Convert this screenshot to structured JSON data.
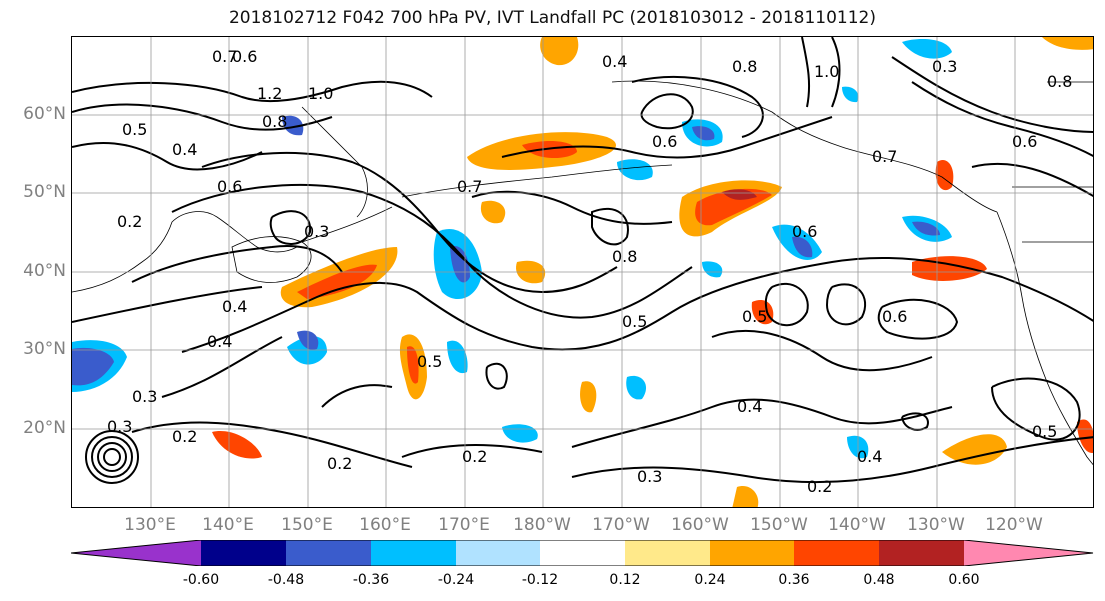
{
  "title": "2018102712 F042 700 hPa PV, IVT Landfall PC (2018103012 - 2018110112)",
  "lat_labels": [
    "60°N",
    "50°N",
    "40°N",
    "30°N",
    "20°N"
  ],
  "lon_labels": [
    "130°E",
    "140°E",
    "150°E",
    "160°E",
    "170°E",
    "180°W",
    "170°W",
    "160°W",
    "150°W",
    "140°W",
    "130°W",
    "120°W"
  ],
  "colorbar": {
    "ticks": [
      "-0.60",
      "-0.48",
      "-0.36",
      "-0.24",
      "-0.12",
      "0.12",
      "0.24",
      "0.36",
      "0.48",
      "0.60"
    ],
    "colors": [
      "#9932cc",
      "#00008b",
      "#3a5ccc",
      "#00bfff",
      "#b0e2ff",
      "#ffffff",
      "#ffe98a",
      "#ffa500",
      "#ff4500",
      "#b22222",
      "#ff88b0"
    ]
  },
  "contour_labels": [
    "0.7",
    "1.2",
    "1.0",
    "0.8",
    "0.5",
    "0.4",
    "0.6",
    "0.3",
    "0.2",
    "0.7",
    "0.6",
    "0.8",
    "0.5",
    "0.4",
    "0.6",
    "0.5",
    "0.4",
    "0.2",
    "0.3",
    "0.2",
    "0.4",
    "0.3",
    "0.2",
    "0.5",
    "0.6",
    "0.7",
    "0.4",
    "0.4",
    "0.8",
    "1.0",
    "0.8",
    "0.6",
    "0.3",
    "0.2",
    "0.3",
    "0.5",
    "0.6"
  ]
}
